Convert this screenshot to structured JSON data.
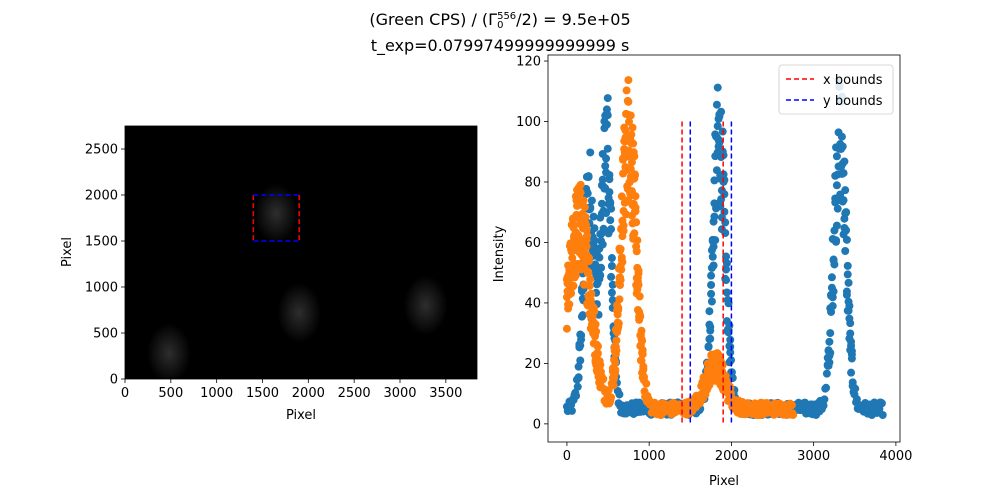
{
  "figure": {
    "title_line1_prefix": "(Green CPS) / (Γ",
    "title_sub": "0",
    "title_sup": "556",
    "title_line1_suffix": "/2) = 9.5e+05",
    "title_line2": "t_exp=0.07997499999999999 s"
  },
  "chart_data": [
    {
      "type": "heatmap",
      "xlabel": "Pixel",
      "ylabel": "Pixel",
      "xlim": [
        0,
        3840
      ],
      "ylim": [
        0,
        2750
      ],
      "xticks": [
        0,
        500,
        1000,
        1500,
        2000,
        2500,
        3000,
        3500
      ],
      "yticks": [
        0,
        500,
        1000,
        1500,
        2000,
        2500
      ],
      "image_description_colormap": "gray",
      "faint_spots": [
        {
          "x": 1650,
          "y": 1800
        },
        {
          "x": 1900,
          "y": 720
        },
        {
          "x": 480,
          "y": 280
        },
        {
          "x": 3280,
          "y": 800
        }
      ],
      "bounds_box": {
        "x_bounds": [
          1400,
          1900
        ],
        "y_bounds": [
          1500,
          2000
        ],
        "x_color": "#ff0000",
        "y_color": "#0000ff"
      }
    },
    {
      "type": "scatter",
      "xlabel": "Pixel",
      "ylabel": "Intensity",
      "xlim": [
        -230,
        4050
      ],
      "ylim": [
        -6,
        122
      ],
      "xticks": [
        0,
        1000,
        2000,
        3000,
        4000
      ],
      "yticks": [
        0,
        20,
        40,
        60,
        80,
        100,
        120
      ],
      "series": [
        {
          "color": "#1f77b4",
          "x_range": [
            0,
            3840
          ],
          "baseline": 5,
          "peaks": [
            {
              "center": 270,
              "height": 70,
              "width": 70
            },
            {
              "center": 480,
              "height": 85,
              "width": 60
            },
            {
              "center": 1850,
              "height": 88,
              "width": 75
            },
            {
              "center": 3320,
              "height": 90,
              "width": 75
            }
          ]
        },
        {
          "color": "#ff7f0e",
          "x_range": [
            0,
            2750
          ],
          "baseline": 5,
          "peaks": [
            {
              "center": 150,
              "height": 60,
              "width": 140
            },
            {
              "center": 750,
              "height": 90,
              "width": 90
            },
            {
              "center": 1800,
              "height": 14,
              "width": 120
            }
          ]
        },
        {
          "name": "x bounds",
          "type": "vline",
          "color": "#ff0000",
          "x": [
            1400,
            1900
          ],
          "y_range": [
            0,
            100
          ]
        },
        {
          "name": "y bounds",
          "type": "vline",
          "color": "#0000ff",
          "x": [
            1500,
            2000
          ],
          "y_range": [
            0,
            100
          ]
        }
      ],
      "legend": {
        "placement": "top-right",
        "entries": [
          "x bounds",
          "y bounds"
        ]
      }
    }
  ]
}
